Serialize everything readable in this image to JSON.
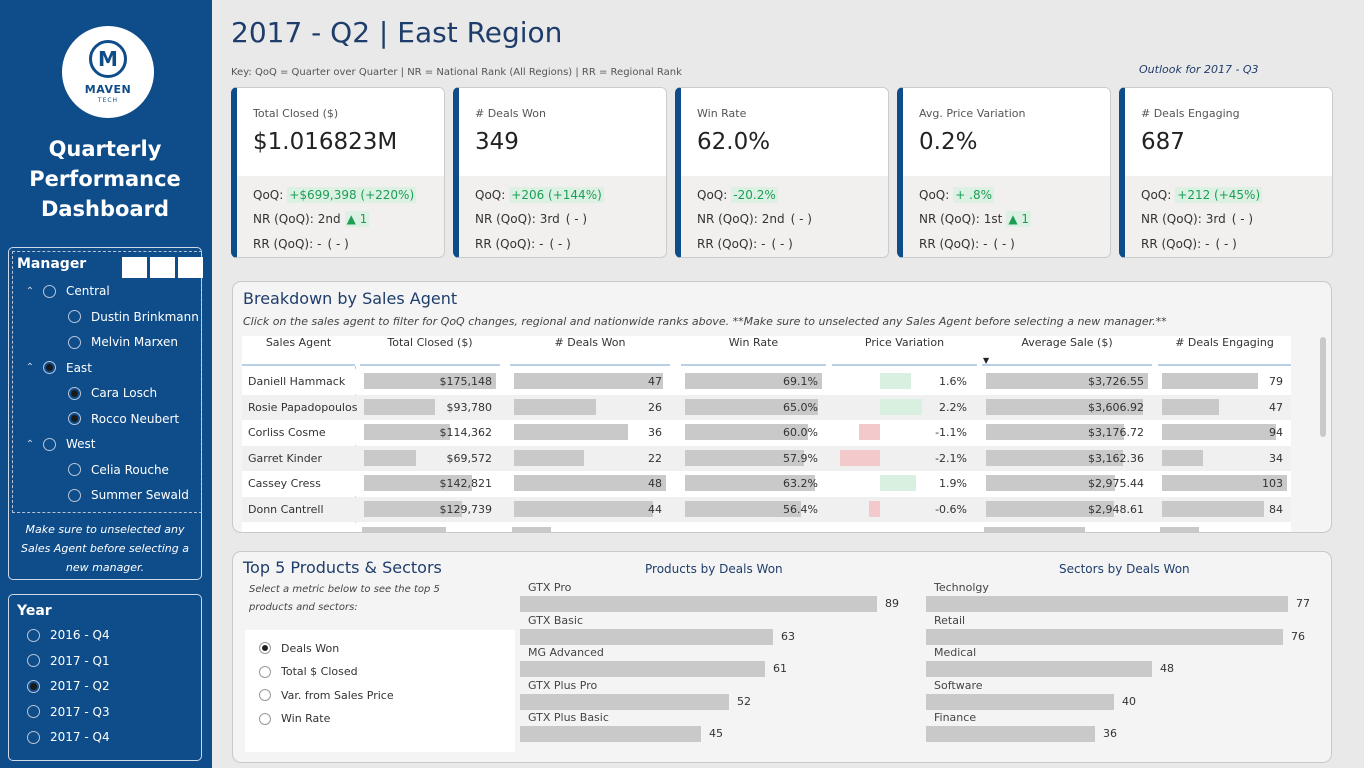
{
  "sidebar": {
    "logo": {
      "brand": "MAVEN",
      "sub": "TECH"
    },
    "title_lines": [
      "Quarterly",
      "Performance",
      "Dashboard"
    ],
    "manager_slicer": {
      "title": "Manager",
      "groups": [
        {
          "label": "Central",
          "selected": false,
          "agents": [
            {
              "label": "Dustin Brinkmann",
              "selected": false
            },
            {
              "label": "Melvin Marxen",
              "selected": false
            }
          ]
        },
        {
          "label": "East",
          "selected": true,
          "agents": [
            {
              "label": "Cara Losch",
              "selected": true
            },
            {
              "label": "Rocco Neubert",
              "selected": true
            }
          ]
        },
        {
          "label": "West",
          "selected": false,
          "agents": [
            {
              "label": "Celia Rouche",
              "selected": false
            },
            {
              "label": "Summer Sewald",
              "selected": false
            }
          ]
        }
      ],
      "note": "Make sure to unselected any Sales Agent before selecting a new manager."
    },
    "year_slicer": {
      "title": "Year",
      "options": [
        {
          "label": "2016 - Q4",
          "selected": false
        },
        {
          "label": "2017 - Q1",
          "selected": false
        },
        {
          "label": "2017 - Q2",
          "selected": true
        },
        {
          "label": "2017 - Q3",
          "selected": false
        },
        {
          "label": "2017 - Q4",
          "selected": false
        }
      ]
    }
  },
  "header": {
    "title": "2017 - Q2 | East Region",
    "key": "Key: QoQ = Quarter over Quarter | NR = National Rank (All Regions) | RR = Regional Rank",
    "outlook": "Outlook for 2017 - Q3"
  },
  "kpis": [
    {
      "label": "Total Closed ($)",
      "value": "$1.016823M",
      "qoq": "+$699,398 (+220%)",
      "nr": "2nd",
      "nr_change": "▲ 1",
      "rr": "-",
      "rr_change": "( - )"
    },
    {
      "label": "# Deals Won",
      "value": "349",
      "qoq": "+206 (+144%)",
      "nr": "3rd",
      "nr_change": "( - )",
      "rr": "-",
      "rr_change": "( - )"
    },
    {
      "label": "Win Rate",
      "value": "62.0%",
      "qoq": "-20.2%",
      "nr": "2nd",
      "nr_change": "( - )",
      "rr": "-",
      "rr_change": "( - )"
    },
    {
      "label": "Avg. Price Variation",
      "value": "0.2%",
      "qoq": "+ .8%",
      "nr": "1st",
      "nr_change": "▲ 1",
      "rr": "-",
      "rr_change": "( - )"
    },
    {
      "label": "# Deals Engaging",
      "value": "687",
      "qoq": "+212 (+45%)",
      "nr": "3rd",
      "nr_change": "( - )",
      "rr": "-",
      "rr_change": "( - )"
    }
  ],
  "kpi_row_labels": {
    "qoq": "QoQ:",
    "nr": "NR (QoQ):",
    "rr": "RR (QoQ):"
  },
  "agent_breakdown": {
    "title": "Breakdown by Sales Agent",
    "subtitle": "Click on the sales agent to filter for QoQ changes, regional and nationwide ranks above. **Make sure to unselected any Sales Agent before selecting a new manager.**",
    "columns": [
      "Sales Agent",
      "Total Closed ($)",
      "# Deals Won",
      "Win Rate",
      "Price Variation",
      "Average Sale ($)",
      "# Deals Engaging"
    ],
    "rows": [
      {
        "agent": "Daniell Hammack",
        "total": "$175,148",
        "total_v": 175148,
        "deals": "47",
        "deals_v": 47,
        "winrate": "69.1%",
        "winrate_v": 69.1,
        "pv": "1.6%",
        "pv_v": 1.6,
        "avg": "$3,726.55",
        "avg_v": 3726.55,
        "engaging": "79",
        "engaging_v": 79
      },
      {
        "agent": "Rosie Papadopoulos",
        "total": "$93,780",
        "total_v": 93780,
        "deals": "26",
        "deals_v": 26,
        "winrate": "65.0%",
        "winrate_v": 65.0,
        "pv": "2.2%",
        "pv_v": 2.2,
        "avg": "$3,606.92",
        "avg_v": 3606.92,
        "engaging": "47",
        "engaging_v": 47
      },
      {
        "agent": "Corliss Cosme",
        "total": "$114,362",
        "total_v": 114362,
        "deals": "36",
        "deals_v": 36,
        "winrate": "60.0%",
        "winrate_v": 60.0,
        "pv": "-1.1%",
        "pv_v": -1.1,
        "avg": "$3,176.72",
        "avg_v": 3176.72,
        "engaging": "94",
        "engaging_v": 94
      },
      {
        "agent": "Garret Kinder",
        "total": "$69,572",
        "total_v": 69572,
        "deals": "22",
        "deals_v": 22,
        "winrate": "57.9%",
        "winrate_v": 57.9,
        "pv": "-2.1%",
        "pv_v": -2.1,
        "avg": "$3,162.36",
        "avg_v": 3162.36,
        "engaging": "34",
        "engaging_v": 34
      },
      {
        "agent": "Cassey Cress",
        "total": "$142,821",
        "total_v": 142821,
        "deals": "48",
        "deals_v": 48,
        "winrate": "63.2%",
        "winrate_v": 63.2,
        "pv": "1.9%",
        "pv_v": 1.9,
        "avg": "$2,975.44",
        "avg_v": 2975.44,
        "engaging": "103",
        "engaging_v": 103
      },
      {
        "agent": "Donn Cantrell",
        "total": "$129,739",
        "total_v": 129739,
        "deals": "44",
        "deals_v": 44,
        "winrate": "56.4%",
        "winrate_v": 56.4,
        "pv": "-0.6%",
        "pv_v": -0.6,
        "avg": "$2,948.61",
        "avg_v": 2948.61,
        "engaging": "84",
        "engaging_v": 84
      }
    ],
    "colors": {
      "bar": "#c9c9c9",
      "pv_pos": "#d9efe0",
      "pv_neg": "#f3c9cb"
    }
  },
  "top_products": {
    "title": "Top 5 Products & Sectors",
    "subtitle": "Select a metric below to see the top 5 products and sectors:",
    "metrics": [
      {
        "label": "Deals Won",
        "selected": true
      },
      {
        "label": "Total $ Closed",
        "selected": false
      },
      {
        "label": "Var. from Sales Price",
        "selected": false
      },
      {
        "label": "Win Rate",
        "selected": false
      }
    ],
    "products_title": "Products by Deals Won",
    "sectors_title": "Sectors by Deals Won",
    "products": [
      {
        "label": "GTX Pro",
        "value": 89
      },
      {
        "label": "GTX Basic",
        "value": 63
      },
      {
        "label": "MG Advanced",
        "value": 61
      },
      {
        "label": "GTX Plus Pro",
        "value": 52
      },
      {
        "label": "GTX Plus Basic",
        "value": 45
      }
    ],
    "sectors": [
      {
        "label": "Technolgy",
        "value": 77
      },
      {
        "label": "Retail",
        "value": 76
      },
      {
        "label": "Medical",
        "value": 48
      },
      {
        "label": "Software",
        "value": 40
      },
      {
        "label": "Finance",
        "value": 36
      }
    ]
  }
}
